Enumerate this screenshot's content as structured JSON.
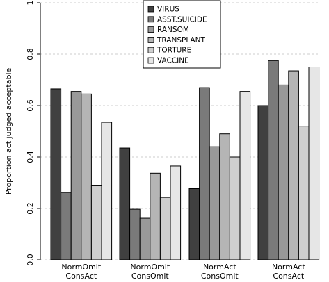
{
  "chart_data": {
    "type": "bar",
    "ylabel": "Proportion act judged acceptable",
    "xlabel": "",
    "ylim": [
      0,
      1
    ],
    "yticks": [
      0.0,
      0.2,
      0.4,
      0.6,
      0.8,
      1.0
    ],
    "ytick_labels": [
      "0.0",
      "0.2",
      "0.4",
      "0.6",
      "0.8",
      "1"
    ],
    "grid": "horizontal dashed",
    "legend_position": "top-center",
    "categories": [
      [
        "NormOmit",
        "ConsAct"
      ],
      [
        "NormOmit",
        "ConsOmit"
      ],
      [
        "NormAct",
        "ConsOmit"
      ],
      [
        "NormAct",
        "ConsAct"
      ]
    ],
    "series": [
      {
        "name": "VIRUS",
        "color": "#404040",
        "values": [
          0.665,
          0.435,
          0.277,
          0.6
        ]
      },
      {
        "name": "ASST.SUICIDE",
        "color": "#7a7a7a",
        "values": [
          0.262,
          0.197,
          0.67,
          0.775
        ]
      },
      {
        "name": "RANSOM",
        "color": "#999999",
        "values": [
          0.655,
          0.162,
          0.44,
          0.68
        ]
      },
      {
        "name": "TRANSPLANT",
        "color": "#b5b5b5",
        "values": [
          0.645,
          0.337,
          0.49,
          0.735
        ]
      },
      {
        "name": "TORTURE",
        "color": "#cfcfcf",
        "values": [
          0.288,
          0.243,
          0.4,
          0.52
        ]
      },
      {
        "name": "VACCINE",
        "color": "#e6e6e6",
        "values": [
          0.535,
          0.365,
          0.655,
          0.75
        ]
      }
    ]
  }
}
